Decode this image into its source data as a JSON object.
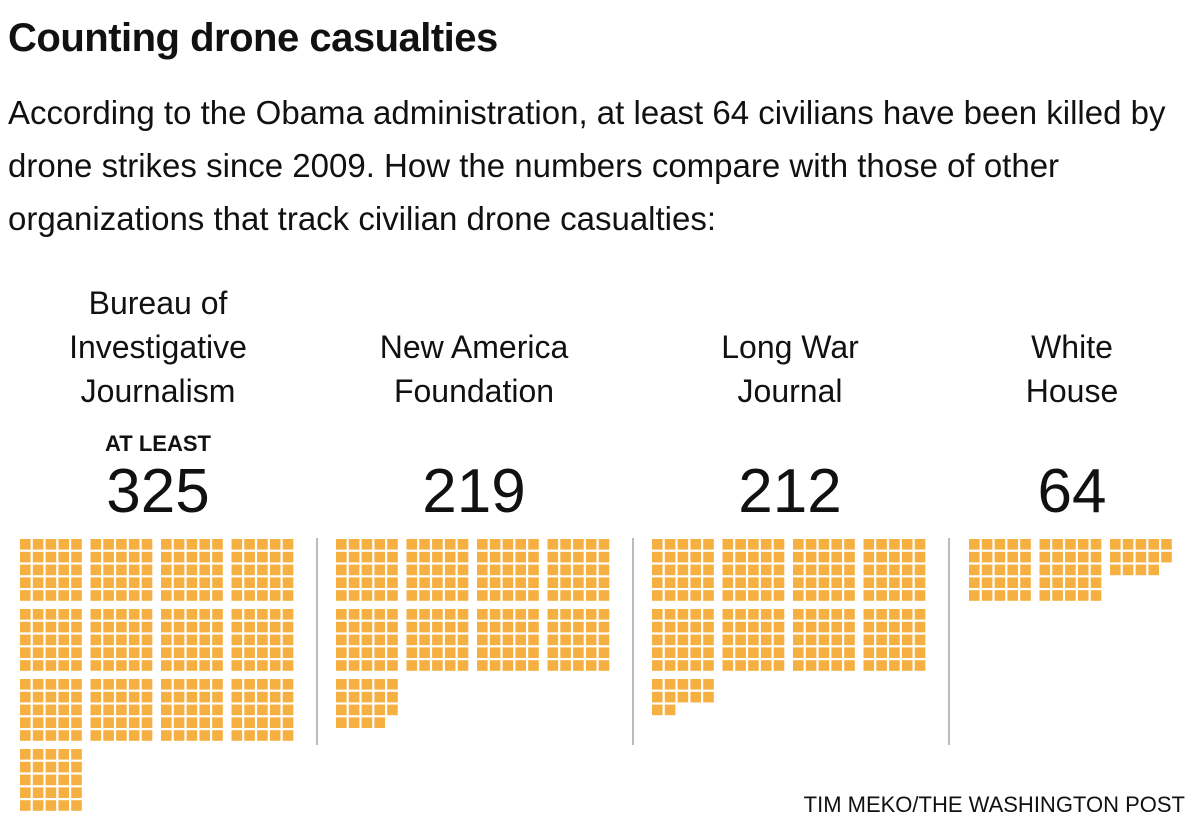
{
  "title": "Counting drone casualties",
  "subtitle": "According to the Obama administration, at least 64 civilians have been killed by drone strikes since 2009. How the numbers compare with those of other organizations that track civilian drone casualties:",
  "credit": "TIM MEKO/THE WASHINGTON POST",
  "colors": {
    "square": "#F5B041",
    "divider": "#BBBBBB"
  },
  "chart_data": {
    "type": "waffle",
    "unit": "civilian deaths",
    "squares_per_block": 25,
    "categories": [
      {
        "name": "Bureau of Investigative Journalism",
        "label_lines": [
          "Bureau of",
          "Investigative",
          "Journalism"
        ],
        "qualifier": "AT LEAST",
        "value": 325,
        "display": "325"
      },
      {
        "name": "New America Foundation",
        "label_lines": [
          "New America",
          "Foundation"
        ],
        "qualifier": "",
        "value": 219,
        "display": "219"
      },
      {
        "name": "Long War Journal",
        "label_lines": [
          "Long War",
          "Journal"
        ],
        "qualifier": "",
        "value": 212,
        "display": "212"
      },
      {
        "name": "White House",
        "label_lines": [
          "White",
          "House"
        ],
        "qualifier": "",
        "value": 64,
        "display": "64"
      }
    ]
  }
}
